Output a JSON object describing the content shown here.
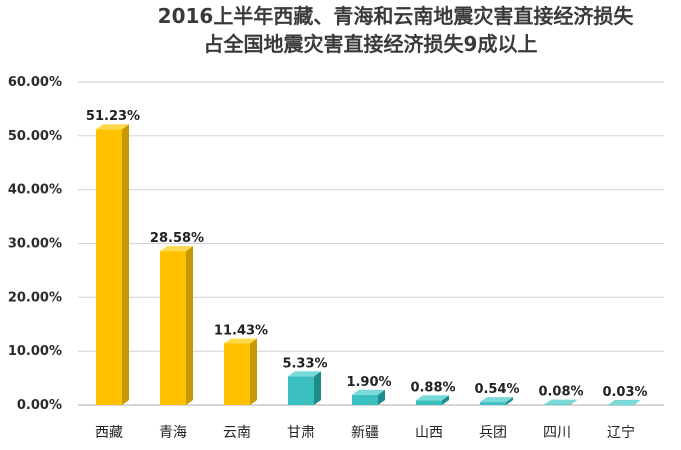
{
  "chart_data": {
    "type": "bar",
    "title_line1": "2016上半年西藏、青海和云南地震灾害直接经济损失",
    "title_line2": "占全国地震灾害直接经济损失9成以上",
    "categories": [
      "西藏",
      "青海",
      "云南",
      "甘肃",
      "新疆",
      "山西",
      "兵团",
      "四川",
      "辽宁"
    ],
    "values": [
      51.23,
      28.58,
      11.43,
      5.33,
      1.9,
      0.88,
      0.54,
      0.08,
      0.03
    ],
    "data_labels": [
      "51.23%",
      "28.58%",
      "11.43%",
      "5.33%",
      "1.90%",
      "0.88%",
      "0.54%",
      "0.08%",
      "0.03%"
    ],
    "ylim": [
      0,
      60
    ],
    "yticks": [
      "0.00%",
      "10.00%",
      "20.00%",
      "30.00%",
      "40.00%",
      "50.00%",
      "60.00%"
    ],
    "grid": true,
    "colors": {
      "highlight": {
        "front": "#FFC000",
        "side": "#C99700",
        "top": "#FFD94D"
      },
      "other": {
        "front": "#3BBFBF",
        "side": "#1F8C8C",
        "top": "#7ADADA"
      }
    },
    "highlight_count": 3
  }
}
